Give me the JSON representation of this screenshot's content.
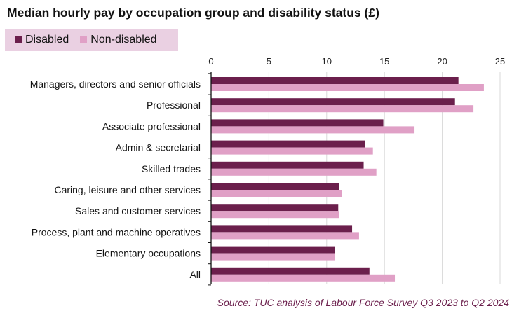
{
  "colors": {
    "disabled": "#6b1f4c",
    "non_disabled": "#e0a0c6",
    "legend_bg": "#ead0e2",
    "grid": "#d9d9d9",
    "source_text": "#6b1f4c"
  },
  "chart_data": {
    "type": "bar",
    "orientation": "horizontal",
    "title": "Median hourly pay by occupation group and disability status (£)",
    "categories": [
      "Managers, directors and senior officials",
      "Professional",
      "Associate professional",
      "Admin & secretarial",
      "Skilled trades",
      "Caring, leisure and other services",
      "Sales and customer services",
      "Process, plant and machine operatives",
      "Elementary occupations",
      "All"
    ],
    "series": [
      {
        "name": "Disabled",
        "values": [
          21.4,
          21.1,
          14.9,
          13.3,
          13.2,
          11.1,
          11.0,
          12.2,
          10.7,
          13.7
        ]
      },
      {
        "name": "Non-disabled",
        "values": [
          23.6,
          22.7,
          17.6,
          14.0,
          14.3,
          11.3,
          11.1,
          12.8,
          10.7,
          15.9
        ]
      }
    ],
    "xlim": [
      0,
      25
    ],
    "xticks": [
      0,
      5,
      10,
      15,
      20,
      25
    ],
    "axis_position": "top",
    "grid": true,
    "legend": "top-left",
    "source": "Source: TUC analysis of Labour Force Survey Q3 2023 to Q2 2024"
  }
}
